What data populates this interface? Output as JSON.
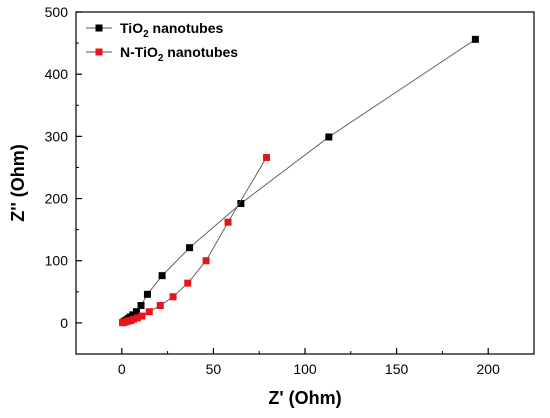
{
  "chart_data": {
    "type": "scatter",
    "title": "",
    "xlabel": "Z' (Ohm)",
    "ylabel": "Z'' (Ohm)",
    "xlim": [
      -25,
      225
    ],
    "ylim": [
      -50,
      500
    ],
    "x_ticks": [
      "0",
      "50",
      "100",
      "150",
      "200"
    ],
    "y_ticks": [
      "0",
      "100",
      "200",
      "300",
      "400",
      "500"
    ],
    "legend_position": "top-left",
    "grid": false,
    "series": [
      {
        "name_parts": [
          "TiO",
          "2",
          " nanotubes"
        ],
        "color": "#000000",
        "marker": "square",
        "line": true,
        "x": [
          0.5,
          1.0,
          1.5,
          2.0,
          2.8,
          3.6,
          4.6,
          6.0,
          8.0,
          10.5,
          14.0,
          22.0,
          37.0,
          65.0,
          113.0,
          193.0
        ],
        "y": [
          0.5,
          1.5,
          2.5,
          3.5,
          5.0,
          7.0,
          9.5,
          13.0,
          18.0,
          28.0,
          46.0,
          76.0,
          121.0,
          192.0,
          299.0,
          456.0
        ]
      },
      {
        "name_parts": [
          "N-TiO",
          "2",
          " nanotubes"
        ],
        "color": "#e8141a",
        "marker": "square",
        "line": true,
        "x": [
          0.5,
          1.0,
          1.5,
          2.5,
          3.5,
          5.0,
          6.5,
          8.5,
          11.0,
          15.0,
          21.0,
          28.0,
          36.0,
          46.0,
          58.0,
          79.0
        ],
        "y": [
          0.5,
          1.0,
          1.5,
          2.0,
          3.0,
          4.0,
          6.0,
          8.0,
          11.0,
          18.0,
          28.0,
          42.0,
          64.0,
          100.0,
          162.0,
          266.0
        ]
      }
    ]
  }
}
